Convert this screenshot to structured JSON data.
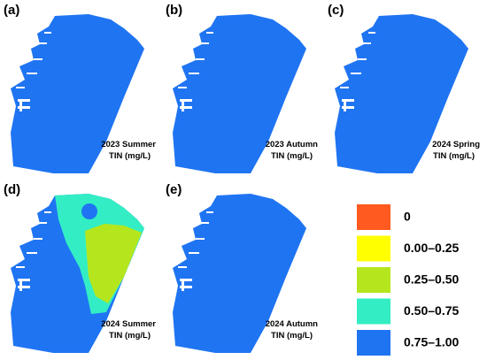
{
  "panels": [
    {
      "label": "(a)",
      "period": "2023 Summer",
      "unit": "TIN (mg/L)"
    },
    {
      "label": "(b)",
      "period": "2023 Autumn",
      "unit": "TIN (mg/L)"
    },
    {
      "label": "(c)",
      "period": "2024 Spring",
      "unit": "TIN (mg/L)"
    },
    {
      "label": "(d)",
      "period": "2024 Summer",
      "unit": "TIN (mg/L)"
    },
    {
      "label": "(e)",
      "period": "2024 Autumn",
      "unit": "TIN (mg/L)"
    }
  ],
  "legend": {
    "items": [
      {
        "label": "0",
        "color": "#ff5a1f"
      },
      {
        "label": "0.00–0.25",
        "color": "#ffff00"
      },
      {
        "label": "0.25–0.50",
        "color": "#b5e61d"
      },
      {
        "label": "0.50–0.75",
        "color": "#33eec4"
      },
      {
        "label": "0.75–1.00",
        "color": "#1f74f2"
      }
    ]
  }
}
